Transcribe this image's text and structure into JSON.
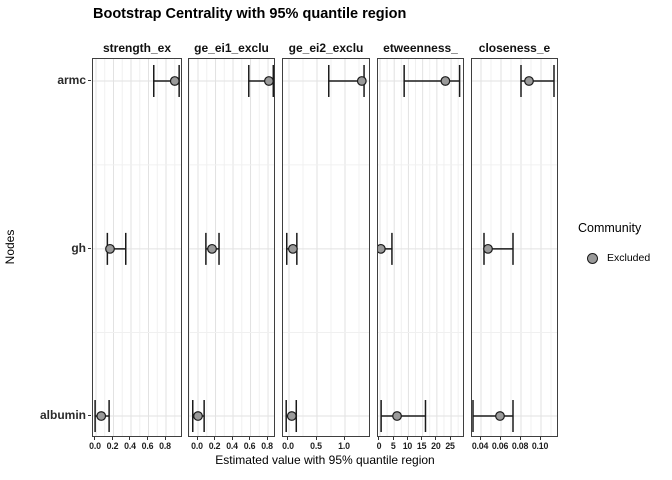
{
  "title": "Bootstrap Centrality with 95% quantile region",
  "axes": {
    "x_title": "Estimated value with 95% quantile region",
    "y_title": "Nodes",
    "y_categories": [
      "armc",
      "gh",
      "albumin"
    ]
  },
  "legend": {
    "title": "Community",
    "items": [
      {
        "label": "Excluded",
        "fill": "#9a9a9a"
      }
    ]
  },
  "colors": {
    "point_fill": "#9a9a9a",
    "point_stroke": "#1a1a1a",
    "errorbar": "#1a1a1a",
    "grid_major": "#e2e2e2",
    "grid_minor": "#f0f0f0",
    "panel_border": "#3f3f3f",
    "background": "#ffffff"
  },
  "chart_data": {
    "type": "scatter",
    "subtype": "pointrange-errorbar-facets",
    "title": "Bootstrap Centrality with 95% quantile region",
    "xlabel": "Estimated value with 95% quantile region",
    "ylabel": "Nodes",
    "y_categories": [
      "armc",
      "gh",
      "albumin"
    ],
    "legend_position": "right",
    "grid": true,
    "facets": [
      {
        "label": "strength_ex",
        "x_domain": [
          -0.034,
          0.994
        ],
        "x_ticks": [
          0.0,
          0.2,
          0.4,
          0.6,
          0.8
        ],
        "tick_labels": [
          "0.0",
          "0.2",
          "0.4",
          "0.6",
          "0.8"
        ],
        "points": [
          {
            "node": "armc",
            "est": 0.9,
            "low": 0.66,
            "high": 0.95
          },
          {
            "node": "gh",
            "est": 0.16,
            "low": 0.13,
            "high": 0.34
          },
          {
            "node": "albumin",
            "est": 0.06,
            "low": -0.01,
            "high": 0.15
          }
        ]
      },
      {
        "label": "ge_ei1_exclu",
        "x_domain": [
          -0.103,
          0.891
        ],
        "x_ticks": [
          0.0,
          0.2,
          0.4,
          0.6,
          0.8
        ],
        "tick_labels": [
          "0.0",
          "0.2",
          "0.4",
          "0.6",
          "0.8"
        ],
        "points": [
          {
            "node": "armc",
            "est": 0.81,
            "low": 0.58,
            "high": 0.86
          },
          {
            "node": "gh",
            "est": 0.16,
            "low": 0.09,
            "high": 0.24
          },
          {
            "node": "albumin",
            "est": 0.0,
            "low": -0.06,
            "high": 0.07
          }
        ]
      },
      {
        "label": "ge_ei2_exclu",
        "x_domain": [
          -0.107,
          1.464
        ],
        "x_ticks": [
          0.0,
          0.5,
          1.0
        ],
        "tick_labels": [
          "0.0",
          "0.5",
          "1.0"
        ],
        "points": [
          {
            "node": "armc",
            "est": 1.3,
            "low": 0.71,
            "high": 1.34
          },
          {
            "node": "gh",
            "est": 0.07,
            "low": -0.04,
            "high": 0.14
          },
          {
            "node": "albumin",
            "est": 0.05,
            "low": -0.05,
            "high": 0.13
          }
        ]
      },
      {
        "label": "etweenness_",
        "x_domain": [
          -0.7,
          29.9
        ],
        "x_ticks": [
          0,
          5,
          10,
          15,
          20,
          25
        ],
        "tick_labels": [
          "0",
          "5",
          "10",
          "15",
          "20",
          "25"
        ],
        "points": [
          {
            "node": "armc",
            "est": 23.0,
            "low": 8.5,
            "high": 28.0
          },
          {
            "node": "gh",
            "est": 0.3,
            "low": -1.4,
            "high": 4.2
          },
          {
            "node": "albumin",
            "est": 6.0,
            "low": 0.4,
            "high": 16.0
          }
        ]
      },
      {
        "label": "closeness_e",
        "x_domain": [
          0.031,
          0.118
        ],
        "x_ticks": [
          0.04,
          0.06,
          0.08,
          0.1
        ],
        "tick_labels": [
          "0.04",
          "0.06",
          "0.08",
          "0.10"
        ],
        "points": [
          {
            "node": "armc",
            "est": 0.088,
            "low": 0.08,
            "high": 0.113
          },
          {
            "node": "gh",
            "est": 0.047,
            "low": 0.043,
            "high": 0.072
          },
          {
            "node": "albumin",
            "est": 0.059,
            "low": 0.032,
            "high": 0.072
          }
        ]
      }
    ]
  }
}
